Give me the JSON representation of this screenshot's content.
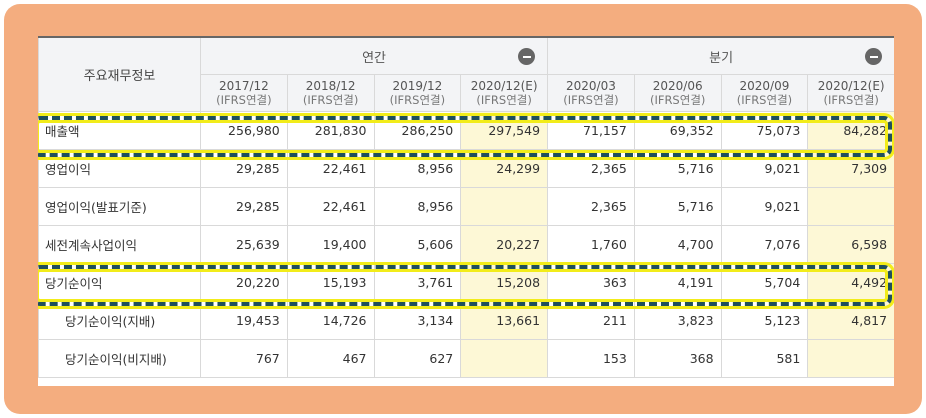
{
  "table": {
    "corner_label": "주요재무정보",
    "groups": [
      {
        "label": "연간"
      },
      {
        "label": "분기"
      }
    ],
    "periods": [
      {
        "date": "2017/12",
        "basis": "(IFRS연결)"
      },
      {
        "date": "2018/12",
        "basis": "(IFRS연결)"
      },
      {
        "date": "2019/12",
        "basis": "(IFRS연결)"
      },
      {
        "date": "2020/12(E)",
        "basis": "(IFRS연결)"
      },
      {
        "date": "2020/03",
        "basis": "(IFRS연결)"
      },
      {
        "date": "2020/06",
        "basis": "(IFRS연결)"
      },
      {
        "date": "2020/09",
        "basis": "(IFRS연결)"
      },
      {
        "date": "2020/12(E)",
        "basis": "(IFRS연결)"
      }
    ],
    "rows": [
      {
        "label": "매출액",
        "values": [
          "256,980",
          "281,830",
          "286,250",
          "297,549",
          "71,157",
          "69,352",
          "75,073",
          "84,282"
        ]
      },
      {
        "label": "영업이익",
        "values": [
          "29,285",
          "22,461",
          "8,956",
          "24,299",
          "2,365",
          "5,716",
          "9,021",
          "7,309"
        ]
      },
      {
        "label": "영업이익(발표기준)",
        "values": [
          "29,285",
          "22,461",
          "8,956",
          "",
          "2,365",
          "5,716",
          "9,021",
          ""
        ]
      },
      {
        "label": "세전계속사업이익",
        "values": [
          "25,639",
          "19,400",
          "5,606",
          "20,227",
          "1,760",
          "4,700",
          "7,076",
          "6,598"
        ]
      },
      {
        "label": "당기순이익",
        "values": [
          "20,220",
          "15,193",
          "3,761",
          "15,208",
          "363",
          "4,191",
          "5,704",
          "4,492"
        ]
      },
      {
        "label": "당기순이익(지배)",
        "values": [
          "19,453",
          "14,726",
          "3,134",
          "13,661",
          "211",
          "3,823",
          "5,123",
          "4,817"
        ]
      },
      {
        "label": "당기순이익(비지배)",
        "values": [
          "767",
          "467",
          "627",
          "",
          "153",
          "368",
          "581",
          ""
        ]
      }
    ]
  },
  "colors": {
    "frame": "#f4ad7f",
    "estimate_bg": "#fdf8d6",
    "highlight_dash": "#1f4f5c",
    "highlight_glow": "#f2ec1a"
  }
}
